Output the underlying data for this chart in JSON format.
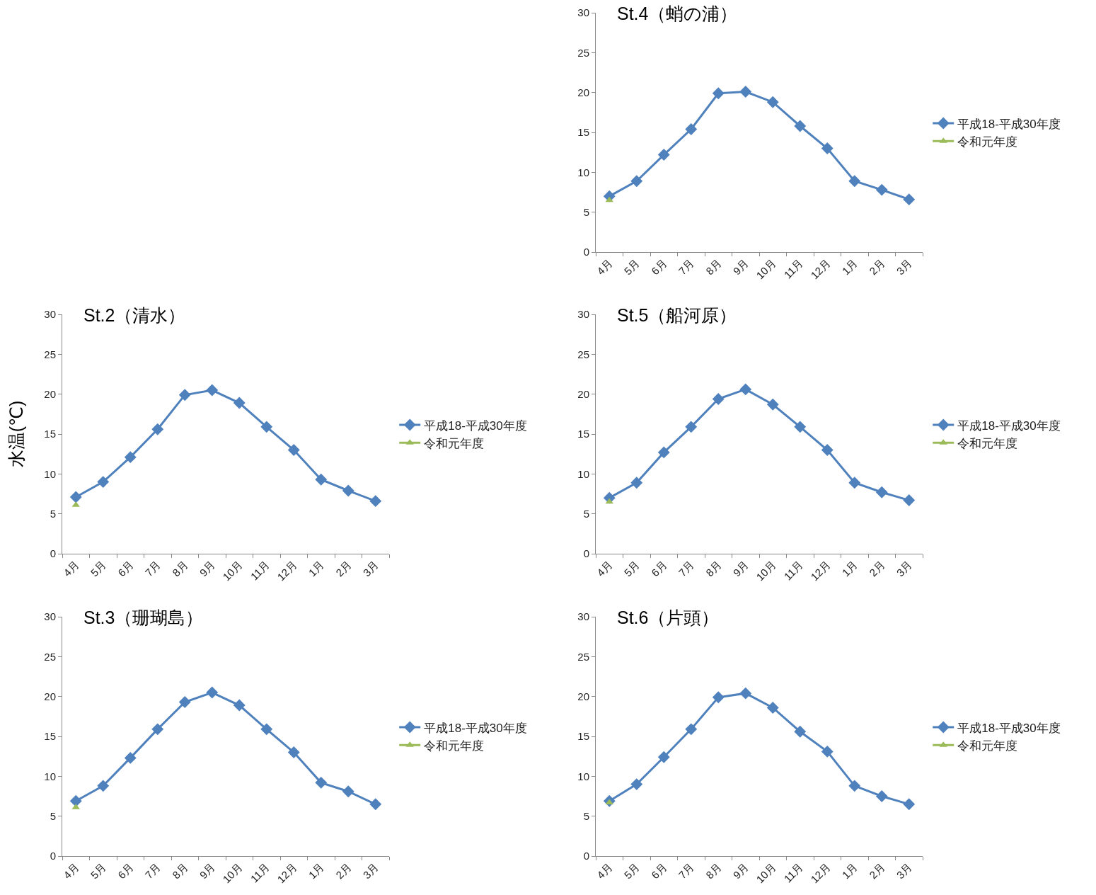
{
  "chart_data": [
    {
      "type": "line",
      "title": "St.4（蛸の浦）",
      "categories": [
        "4月",
        "5月",
        "6月",
        "7月",
        "8月",
        "9月",
        "10月",
        "11月",
        "12月",
        "1月",
        "2月",
        "3月"
      ],
      "ylim": [
        0,
        30
      ],
      "yticks": [
        0,
        5,
        10,
        15,
        20,
        25,
        30
      ],
      "grid": false,
      "legend": "right",
      "line_style": "solid",
      "series": [
        {
          "name": "平成18-平成30年度",
          "color": "#4f81bd",
          "marker": "diamond",
          "values": [
            7.0,
            8.9,
            12.2,
            15.4,
            19.9,
            20.1,
            18.8,
            15.8,
            13.0,
            8.9,
            7.8,
            6.6
          ]
        },
        {
          "name": "令和元年度",
          "color": "#9bbb59",
          "marker": "triangle",
          "values": [
            6.5,
            null,
            null,
            null,
            null,
            null,
            null,
            null,
            null,
            null,
            null,
            null
          ]
        }
      ]
    },
    {
      "type": "line",
      "title": "St.2（清水）",
      "ylabel": "水温(℃)",
      "categories": [
        "4月",
        "5月",
        "6月",
        "7月",
        "8月",
        "9月",
        "10月",
        "11月",
        "12月",
        "1月",
        "2月",
        "3月"
      ],
      "ylim": [
        0,
        30
      ],
      "yticks": [
        0,
        5,
        10,
        15,
        20,
        25,
        30
      ],
      "grid": false,
      "legend": "right",
      "line_style": "solid",
      "series": [
        {
          "name": "平成18-平成30年度",
          "color": "#4f81bd",
          "marker": "diamond",
          "values": [
            7.1,
            9.0,
            12.1,
            15.6,
            19.9,
            20.5,
            18.9,
            15.9,
            13.0,
            9.3,
            7.9,
            6.6
          ]
        },
        {
          "name": "令和元年度",
          "color": "#9bbb59",
          "marker": "triangle",
          "values": [
            6.1,
            null,
            null,
            null,
            null,
            null,
            null,
            null,
            null,
            null,
            null,
            null
          ]
        }
      ]
    },
    {
      "type": "line",
      "title": "St.5（船河原）",
      "categories": [
        "4月",
        "5月",
        "6月",
        "7月",
        "8月",
        "9月",
        "10月",
        "11月",
        "12月",
        "1月",
        "2月",
        "3月"
      ],
      "ylim": [
        0,
        30
      ],
      "yticks": [
        0,
        5,
        10,
        15,
        20,
        25,
        30
      ],
      "grid": false,
      "legend": "right",
      "line_style": "solid",
      "series": [
        {
          "name": "平成18-平成30年度",
          "color": "#4f81bd",
          "marker": "diamond",
          "values": [
            7.0,
            8.9,
            12.7,
            15.9,
            19.4,
            20.6,
            18.7,
            15.9,
            13.0,
            8.9,
            7.7,
            6.7
          ]
        },
        {
          "name": "令和元年度",
          "color": "#9bbb59",
          "marker": "triangle",
          "values": [
            6.5,
            null,
            null,
            null,
            null,
            null,
            null,
            null,
            null,
            null,
            null,
            null
          ]
        }
      ]
    },
    {
      "type": "line",
      "title": "St.3（珊瑚島）",
      "categories": [
        "4月",
        "5月",
        "6月",
        "7月",
        "8月",
        "9月",
        "10月",
        "11月",
        "12月",
        "1月",
        "2月",
        "3月"
      ],
      "ylim": [
        0,
        30
      ],
      "yticks": [
        0,
        5,
        10,
        15,
        20,
        25,
        30
      ],
      "grid": false,
      "legend": "right",
      "line_style": "solid",
      "series": [
        {
          "name": "平成18-平成30年度",
          "color": "#4f81bd",
          "marker": "diamond",
          "values": [
            6.9,
            8.8,
            12.3,
            15.9,
            19.3,
            20.5,
            18.9,
            15.9,
            13.0,
            9.2,
            8.1,
            6.5
          ]
        },
        {
          "name": "令和元年度",
          "color": "#9bbb59",
          "marker": "triangle",
          "values": [
            6.1,
            null,
            null,
            null,
            null,
            null,
            null,
            null,
            null,
            null,
            null,
            null
          ]
        }
      ]
    },
    {
      "type": "line",
      "title": "St.6（片頭）",
      "categories": [
        "4月",
        "5月",
        "6月",
        "7月",
        "8月",
        "9月",
        "10月",
        "11月",
        "12月",
        "1月",
        "2月",
        "3月"
      ],
      "ylim": [
        0,
        30
      ],
      "yticks": [
        0,
        5,
        10,
        15,
        20,
        25,
        30
      ],
      "grid": false,
      "legend": "right",
      "line_style": "solid",
      "series": [
        {
          "name": "平成18-平成30年度",
          "color": "#4f81bd",
          "marker": "diamond",
          "values": [
            6.9,
            9.0,
            12.4,
            15.9,
            19.9,
            20.4,
            18.6,
            15.6,
            13.1,
            8.8,
            7.5,
            6.5
          ]
        },
        {
          "name": "令和元年度",
          "color": "#9bbb59",
          "marker": "triangle",
          "values": [
            6.7,
            null,
            null,
            null,
            null,
            null,
            null,
            null,
            null,
            null,
            null,
            null
          ]
        }
      ]
    }
  ]
}
